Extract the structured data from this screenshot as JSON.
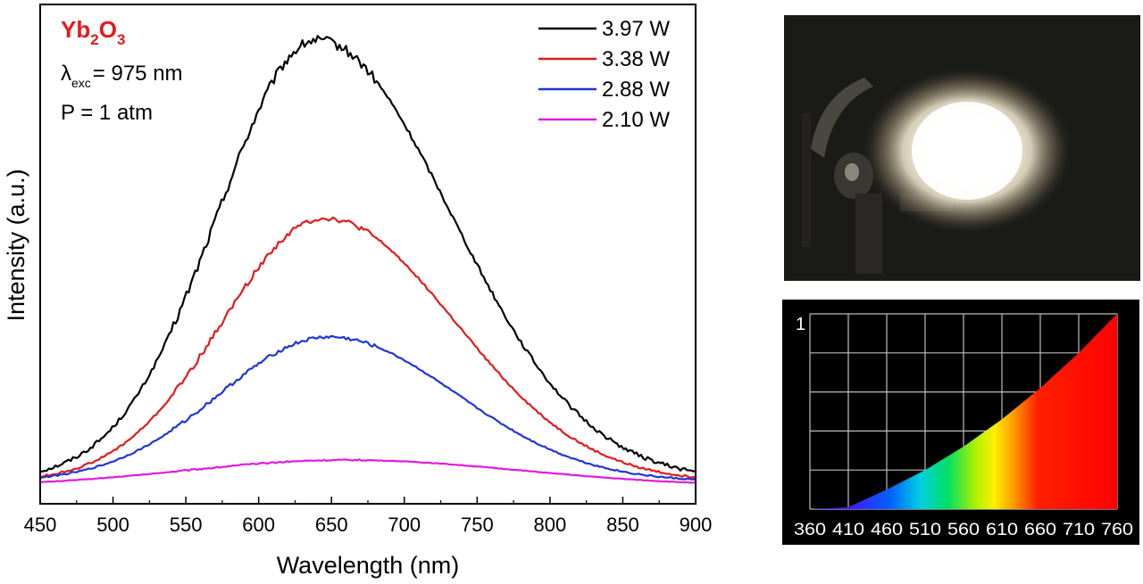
{
  "chart_data": [
    {
      "type": "line",
      "xlabel": "Wavelength (nm)",
      "ylabel": "Intensity (a.u.)",
      "xlim": [
        450,
        900
      ],
      "xticks": [
        "450",
        "500",
        "550",
        "600",
        "650",
        "700",
        "750",
        "800",
        "850",
        "900"
      ],
      "ylim": [
        0,
        100
      ],
      "yticks_shown": false,
      "grid": false,
      "legend_position": "top-right",
      "annotations": {
        "material": "Yb2O3",
        "excitation_symbol": "λ",
        "excitation_subscript": "exc",
        "excitation_value": "= 975 nm",
        "pressure": "P = 1 atm"
      },
      "series": [
        {
          "name": "3.97 W",
          "color": "#000000",
          "peak_nm": 640,
          "peak": 100,
          "width_left": 68,
          "width_right": 92,
          "offset": 2,
          "noise": 2.2
        },
        {
          "name": "3.38 W",
          "color": "#e31a1c",
          "peak_nm": 645,
          "peak": 60,
          "width_left": 70,
          "width_right": 90,
          "offset": 1.5,
          "noise": 1.2
        },
        {
          "name": "2.88 W",
          "color": "#1f35d6",
          "peak_nm": 648,
          "peak": 33,
          "width_left": 75,
          "width_right": 88,
          "offset": 1.5,
          "noise": 0.8
        },
        {
          "name": "2.10 W",
          "color": "#e01be0",
          "peak_nm": 660,
          "peak": 6,
          "width_left": 110,
          "width_right": 120,
          "offset": 0.5,
          "noise": 0.3
        }
      ]
    },
    {
      "type": "area",
      "x": [
        360,
        410,
        460,
        510,
        560,
        610,
        660,
        710,
        760
      ],
      "xticks": [
        "360",
        "410",
        "460",
        "510",
        "560",
        "610",
        "660",
        "710",
        "760"
      ],
      "yticks": [
        "1"
      ],
      "values": [
        0.0,
        0.01,
        0.1,
        0.2,
        0.32,
        0.46,
        0.62,
        0.8,
        1.0
      ],
      "xlim": [
        360,
        760
      ],
      "ylim": [
        0,
        1
      ],
      "grid": true
    }
  ],
  "photo": {
    "description_icon": "white-light-emission-photo"
  },
  "colors": {
    "background": "#ffffff",
    "spectrum_background": "#000000",
    "grid": "#bbbbbb",
    "annotation_red": "#e31a1c"
  }
}
